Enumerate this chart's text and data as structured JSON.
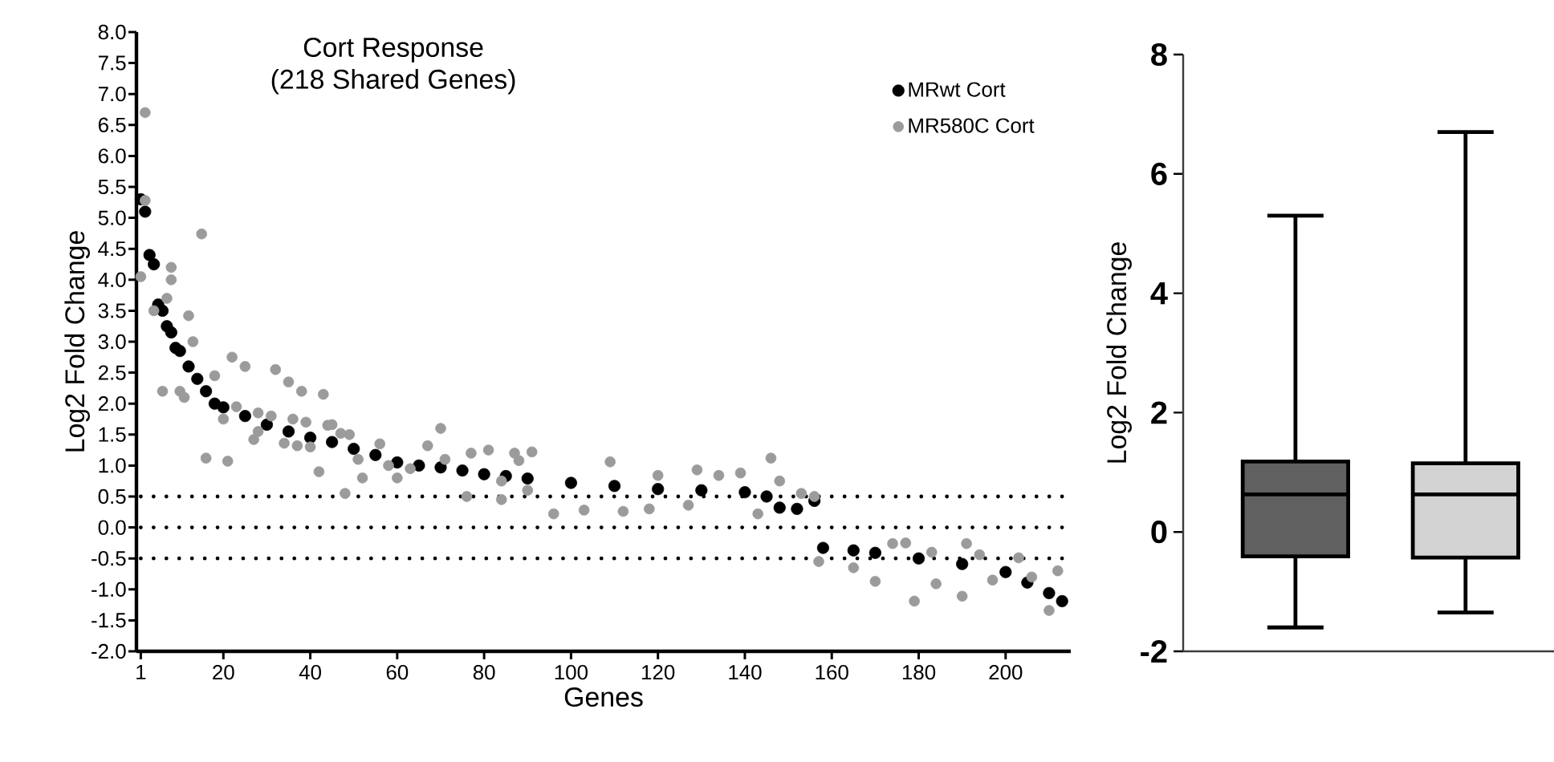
{
  "chart_data": [
    {
      "type": "scatter",
      "title": "Cort Response",
      "subtitle": "(218 Shared Genes)",
      "xlabel": "Genes",
      "ylabel": "Log2 Fold Change",
      "xlim": [
        0,
        215
      ],
      "xticks": [
        1,
        20,
        40,
        60,
        80,
        100,
        120,
        140,
        160,
        180,
        200
      ],
      "ylim": [
        -2,
        8
      ],
      "yticks": [
        {
          "value": -2,
          "label": "-2.0"
        },
        {
          "value": -1.5,
          "label": "-1.5"
        },
        {
          "value": -1,
          "label": "-1.0"
        },
        {
          "value": -0.5,
          "label": "-0.5"
        },
        {
          "value": 0,
          "label": "0.0"
        },
        {
          "value": 0.5,
          "label": "0.5"
        },
        {
          "value": 1,
          "label": "1.0"
        },
        {
          "value": 1.5,
          "label": "1.5"
        },
        {
          "value": 2,
          "label": "2.0"
        },
        {
          "value": 2.5,
          "label": "2.5"
        },
        {
          "value": 3,
          "label": "3.0"
        },
        {
          "value": 3.5,
          "label": "3.5"
        },
        {
          "value": 4,
          "label": "4.0"
        },
        {
          "value": 4.5,
          "label": "4.5"
        },
        {
          "value": 5,
          "label": "5.0"
        },
        {
          "value": 5.5,
          "label": "5.5"
        },
        {
          "value": 6,
          "label": "6.0"
        },
        {
          "value": 6.5,
          "label": "6.5"
        },
        {
          "value": 7,
          "label": "7.0"
        },
        {
          "value": 7.5,
          "label": "7.5"
        },
        {
          "value": 8,
          "label": "8.0"
        }
      ],
      "legend": "top right",
      "series": [
        {
          "name": "MRwt Cort",
          "color": "#000000",
          "x": [
            1,
            2,
            3,
            4,
            5,
            6,
            7,
            8,
            9,
            10,
            12,
            14,
            16,
            18,
            20,
            25,
            30,
            35,
            40,
            45,
            50,
            55,
            60,
            65,
            70,
            75,
            80,
            85,
            90,
            100,
            110,
            120,
            130,
            140,
            145,
            148,
            152,
            156,
            158,
            165,
            170,
            180,
            190,
            200,
            205,
            210,
            213
          ],
          "values": [
            5.3,
            5.1,
            4.4,
            4.25,
            3.6,
            3.5,
            3.25,
            3.15,
            2.9,
            2.85,
            2.6,
            2.4,
            2.2,
            2.0,
            1.94,
            1.8,
            1.66,
            1.55,
            1.45,
            1.38,
            1.27,
            1.17,
            1.05,
            1.0,
            0.97,
            0.92,
            0.86,
            0.83,
            0.79,
            0.72,
            0.67,
            0.62,
            0.6,
            0.57,
            0.5,
            0.32,
            0.3,
            0.43,
            -0.33,
            -0.37,
            -0.41,
            -0.5,
            -0.59,
            -0.72,
            -0.89,
            -1.06,
            -1.19
          ]
        },
        {
          "name": "MR580C Cort",
          "color": "#9b9b9b",
          "x": [
            1,
            2,
            2,
            15,
            8,
            8,
            7,
            4,
            12,
            13,
            6,
            10,
            11,
            18,
            22,
            25,
            32,
            35,
            38,
            43,
            23,
            28,
            31,
            36,
            39,
            44,
            20,
            16,
            21,
            27,
            28,
            34,
            37,
            40,
            42,
            45,
            47,
            49,
            48,
            51,
            52,
            56,
            58,
            60,
            63,
            70,
            67,
            71,
            76,
            77,
            81,
            84,
            84,
            87,
            88,
            91,
            90,
            96,
            109,
            103,
            112,
            118,
            120,
            127,
            129,
            134,
            139,
            143,
            146,
            148,
            153,
            156,
            157,
            165,
            170,
            174,
            177,
            179,
            184,
            183,
            190,
            191,
            197,
            203,
            210,
            212,
            206,
            194
          ],
          "values": [
            4.05,
            6.7,
            5.28,
            4.74,
            4.2,
            4.0,
            3.7,
            3.5,
            3.42,
            3.0,
            2.2,
            2.2,
            2.1,
            2.45,
            2.75,
            2.6,
            2.55,
            2.35,
            2.2,
            2.15,
            1.95,
            1.85,
            1.8,
            1.75,
            1.7,
            1.65,
            1.75,
            1.12,
            1.07,
            1.42,
            1.55,
            1.36,
            1.32,
            1.3,
            0.9,
            1.66,
            1.52,
            1.5,
            0.55,
            1.1,
            0.8,
            1.35,
            1.0,
            0.8,
            0.95,
            1.6,
            1.32,
            1.1,
            0.5,
            1.2,
            1.25,
            0.75,
            0.45,
            1.2,
            1.08,
            1.22,
            0.6,
            0.22,
            1.06,
            0.28,
            0.26,
            0.3,
            0.84,
            0.36,
            0.93,
            0.84,
            0.88,
            0.22,
            1.12,
            0.75,
            0.55,
            0.5,
            -0.55,
            -0.65,
            -0.87,
            -0.26,
            -0.25,
            -1.19,
            -0.91,
            -0.4,
            -1.11,
            -0.26,
            -0.85,
            -0.49,
            -1.34,
            -0.7,
            -0.8,
            -0.44
          ]
        }
      ],
      "ref_lines": [
        {
          "axis": "y",
          "value": 0.5,
          "color": "#000000",
          "line_style": "dotted"
        },
        {
          "axis": "y",
          "value": 0,
          "color": "#000000",
          "line_style": "dotted"
        },
        {
          "axis": "y",
          "value": -0.5,
          "color": "#000000",
          "line_style": "dotted"
        }
      ]
    },
    {
      "type": "box",
      "ylabel": "Log2 Fold Change",
      "categories": [
        null,
        null
      ],
      "tick_labels": "y",
      "ylim": [
        -2,
        8
      ],
      "yticks": [
        -2,
        0,
        2,
        4,
        6,
        8
      ],
      "colors": [
        "#606060",
        "#d3d3d3"
      ],
      "boxes": [
        {
          "low": -1.6,
          "q1": -0.41,
          "median": 0.63,
          "q3": 1.18,
          "high": 5.3
        },
        {
          "low": -1.35,
          "q1": -0.43,
          "median": 0.63,
          "q3": 1.15,
          "high": 6.7
        }
      ]
    }
  ]
}
